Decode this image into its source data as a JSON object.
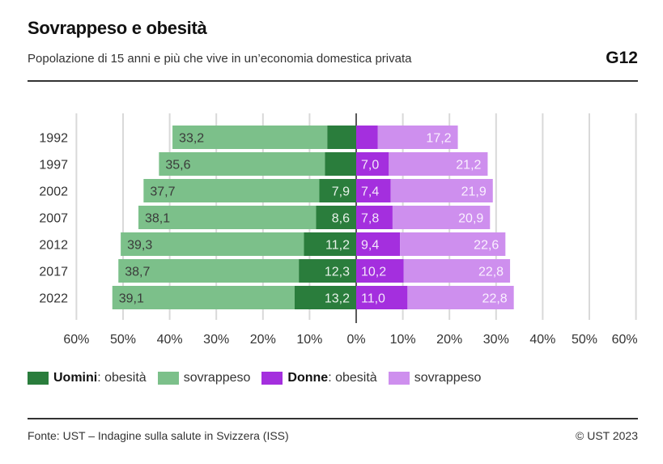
{
  "header": {
    "title": "Sovrappeso e obesità",
    "subtitle": "Popolazione di 15 anni e più che vive in un’economia domestica privata",
    "code": "G12"
  },
  "legend": {
    "men_label": "Uomini",
    "men_obesity": ": obesità",
    "men_overweight": "sovrappeso",
    "women_label": "Donne",
    "women_obesity": ": obesità",
    "women_overweight": "sovrappeso"
  },
  "colors": {
    "men_obesity": "#2a7d3c",
    "men_overweight": "#7cc08a",
    "women_obesity": "#a42fde",
    "women_overweight": "#ce8fee",
    "grid": "#d9d9d9",
    "axis": "#222222"
  },
  "footer": {
    "source": "Fonte: UST – Indagine sulla salute in Svizzera (ISS)",
    "copyright": "© UST 2023"
  },
  "chart_data": {
    "type": "bar",
    "orientation": "horizontal-diverging-stacked",
    "title": "Sovrappeso e obesità",
    "subtitle": "Popolazione di 15 anni e più che vive in un’economia domestica privata",
    "categories": [
      "1992",
      "1997",
      "2002",
      "2007",
      "2012",
      "2017",
      "2022"
    ],
    "series": [
      {
        "name": "Uomini: obesità",
        "side": "left",
        "values": [
          6.2,
          6.7,
          7.9,
          8.6,
          11.2,
          12.3,
          13.2
        ],
        "labels": [
          "",
          "",
          "7,9",
          "8,6",
          "11,2",
          "12,3",
          "13,2"
        ]
      },
      {
        "name": "Uomini: sovrappeso",
        "side": "left",
        "values": [
          33.2,
          35.6,
          37.7,
          38.1,
          39.3,
          38.7,
          39.1
        ],
        "labels": [
          "33,2",
          "35,6",
          "37,7",
          "38,1",
          "39,3",
          "38,7",
          "39,1"
        ]
      },
      {
        "name": "Donne: obesità",
        "side": "right",
        "values": [
          4.6,
          7.0,
          7.4,
          7.8,
          9.4,
          10.2,
          11.0
        ],
        "labels": [
          "",
          "7,0",
          "7,4",
          "7,8",
          "9,4",
          "10,2",
          "11,0"
        ]
      },
      {
        "name": "Donne: sovrappeso",
        "side": "right",
        "values": [
          17.2,
          21.2,
          21.9,
          20.9,
          22.6,
          22.8,
          22.8
        ],
        "labels": [
          "17,2",
          "21,2",
          "21,9",
          "20,9",
          "22,6",
          "22,8",
          "22,8"
        ]
      }
    ],
    "xticks_left": [
      "60%",
      "50%",
      "40%",
      "30%",
      "20%",
      "10%"
    ],
    "xtick_zero": "0%",
    "xticks_right": [
      "10%",
      "20%",
      "30%",
      "40%",
      "50%",
      "60%"
    ],
    "xlim": [
      -60,
      60
    ],
    "xlabel": "",
    "ylabel": "",
    "grid": true,
    "legend_position": "bottom"
  }
}
